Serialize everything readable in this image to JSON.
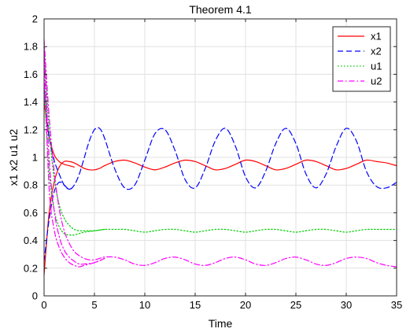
{
  "chart_data": {
    "type": "line",
    "title": "Theorem 4.1",
    "xlabel": "Time",
    "ylabel": "x1 x2 u1 u2",
    "xlim": [
      0,
      35
    ],
    "ylim": [
      0,
      2
    ],
    "xticks": [
      0,
      5,
      10,
      15,
      20,
      25,
      30,
      35
    ],
    "yticks": [
      0,
      0.2,
      0.4,
      0.6,
      0.8,
      1,
      1.2,
      1.4,
      1.6,
      1.8,
      2
    ],
    "xtick_labels": [
      "0",
      "5",
      "10",
      "15",
      "20",
      "25",
      "30",
      "35"
    ],
    "ytick_labels": [
      "0",
      "0.2",
      "0.4",
      "0.6",
      "0.8",
      "1",
      "1.2",
      "1.4",
      "1.6",
      "1.8",
      "2"
    ],
    "grid": true,
    "legend_position": "top-right",
    "series": [
      {
        "name": "x1",
        "color": "#ff0000",
        "dash": "solid",
        "x": [
          0,
          0.5,
          1,
          1.5,
          2,
          2.5,
          3,
          3.5,
          4,
          4.5,
          5,
          5.5,
          6,
          7,
          8,
          9,
          10,
          11,
          12,
          13,
          14,
          15,
          16,
          17,
          18,
          19,
          20,
          21,
          22,
          23,
          24,
          25,
          26,
          27,
          28,
          29,
          30,
          31,
          32,
          33,
          34,
          35
        ],
        "y": [
          0.15,
          0.6,
          0.82,
          0.93,
          0.97,
          0.97,
          0.96,
          0.94,
          0.92,
          0.91,
          0.91,
          0.92,
          0.94,
          0.97,
          0.98,
          0.96,
          0.93,
          0.91,
          0.93,
          0.96,
          0.98,
          0.97,
          0.94,
          0.91,
          0.92,
          0.95,
          0.98,
          0.97,
          0.94,
          0.91,
          0.92,
          0.95,
          0.98,
          0.97,
          0.94,
          0.91,
          0.92,
          0.95,
          0.98,
          0.97,
          0.96,
          0.94
        ]
      },
      {
        "name": "x1",
        "color": "#ff0000",
        "dash": "solid",
        "x": [
          0,
          0.5,
          1,
          1.5,
          2,
          2.5,
          3
        ],
        "y": [
          1.4,
          1.15,
          1.02,
          0.97,
          0.95,
          0.94,
          0.93
        ]
      },
      {
        "name": "x2",
        "color": "#0000ff",
        "dash": "dash",
        "x": [
          0,
          0.5,
          1,
          1.5,
          2,
          2.5,
          3,
          3.5,
          4,
          4.5,
          5,
          5.5,
          6,
          7,
          8,
          9,
          10,
          11,
          12,
          13,
          14,
          15,
          16,
          17,
          18,
          19,
          20,
          21,
          22,
          23,
          24,
          25,
          26,
          27,
          28,
          29,
          30,
          31,
          32,
          33,
          34,
          35
        ],
        "y": [
          0.25,
          0.55,
          0.75,
          0.82,
          0.8,
          0.77,
          0.8,
          0.88,
          1.0,
          1.12,
          1.2,
          1.21,
          1.14,
          0.92,
          0.78,
          0.8,
          0.98,
          1.17,
          1.2,
          1.05,
          0.84,
          0.78,
          0.92,
          1.12,
          1.21,
          1.08,
          0.86,
          0.78,
          0.9,
          1.1,
          1.21,
          1.1,
          0.88,
          0.78,
          0.88,
          1.08,
          1.21,
          1.12,
          0.9,
          0.79,
          0.78,
          0.82
        ]
      },
      {
        "name": "x2",
        "color": "#0000ff",
        "dash": "dash",
        "x": [
          0,
          0.5,
          1,
          1.5,
          2,
          2.5,
          3
        ],
        "y": [
          1.5,
          1.15,
          0.98,
          0.88,
          0.8,
          0.77,
          0.79
        ]
      },
      {
        "name": "u1",
        "color": "#00cc00",
        "dash": "dot",
        "x": [
          0,
          0.5,
          1,
          1.5,
          2,
          2.5,
          3,
          3.5,
          4,
          5,
          6,
          7,
          8,
          9,
          10,
          11,
          12,
          13,
          14,
          15,
          16,
          17,
          18,
          19,
          20,
          21,
          22,
          23,
          24,
          25,
          26,
          27,
          28,
          29,
          30,
          31,
          32,
          33,
          34,
          35
        ],
        "y": [
          1.8,
          1.2,
          0.85,
          0.66,
          0.56,
          0.51,
          0.48,
          0.47,
          0.47,
          0.47,
          0.48,
          0.48,
          0.48,
          0.47,
          0.46,
          0.47,
          0.48,
          0.48,
          0.47,
          0.46,
          0.47,
          0.48,
          0.48,
          0.47,
          0.46,
          0.47,
          0.48,
          0.48,
          0.47,
          0.46,
          0.47,
          0.48,
          0.48,
          0.47,
          0.46,
          0.47,
          0.48,
          0.48,
          0.48,
          0.48
        ]
      },
      {
        "name": "u1",
        "color": "#00cc00",
        "dash": "dot",
        "x": [
          0,
          0.5,
          1,
          1.5,
          2,
          2.5,
          3,
          3.5,
          4,
          5,
          6
        ],
        "y": [
          1.5,
          0.9,
          0.62,
          0.5,
          0.45,
          0.44,
          0.44,
          0.45,
          0.46,
          0.47,
          0.48
        ]
      },
      {
        "name": "u2",
        "color": "#ff00ff",
        "dash": "dashdot",
        "x": [
          0,
          0.5,
          1,
          1.5,
          2,
          2.5,
          3,
          3.5,
          4,
          4.5,
          5,
          5.5,
          6,
          7,
          8,
          9,
          10,
          11,
          12,
          13,
          14,
          15,
          16,
          17,
          18,
          19,
          20,
          21,
          22,
          23,
          24,
          25,
          26,
          27,
          28,
          29,
          30,
          31,
          32,
          33,
          34,
          35
        ],
        "y": [
          1.85,
          1.3,
          0.9,
          0.63,
          0.47,
          0.38,
          0.32,
          0.29,
          0.27,
          0.26,
          0.26,
          0.27,
          0.28,
          0.28,
          0.26,
          0.23,
          0.22,
          0.24,
          0.27,
          0.28,
          0.26,
          0.23,
          0.22,
          0.24,
          0.27,
          0.28,
          0.26,
          0.23,
          0.22,
          0.24,
          0.27,
          0.28,
          0.26,
          0.23,
          0.22,
          0.24,
          0.27,
          0.28,
          0.27,
          0.24,
          0.22,
          0.21
        ]
      },
      {
        "name": "u2",
        "color": "#ff00ff",
        "dash": "dashdot",
        "x": [
          0,
          0.5,
          1,
          1.5,
          2,
          2.5,
          3,
          3.5,
          4,
          5,
          6
        ],
        "y": [
          1.8,
          1.0,
          0.62,
          0.43,
          0.33,
          0.28,
          0.25,
          0.23,
          0.23,
          0.24,
          0.27
        ]
      },
      {
        "name": "u2",
        "color": "#ff00ff",
        "dash": "dashdot",
        "x": [
          0,
          0.5,
          1,
          1.5,
          2,
          2.5,
          3,
          3.5,
          4,
          5,
          6
        ],
        "y": [
          1.7,
          0.78,
          0.48,
          0.35,
          0.28,
          0.24,
          0.22,
          0.21,
          0.22,
          0.24,
          0.27
        ]
      }
    ],
    "legend": [
      {
        "label": "x1",
        "color": "#ff0000",
        "dash": "solid"
      },
      {
        "label": "x2",
        "color": "#0000ff",
        "dash": "dash"
      },
      {
        "label": "u1",
        "color": "#00cc00",
        "dash": "dot"
      },
      {
        "label": "u2",
        "color": "#ff00ff",
        "dash": "dashdot"
      }
    ]
  }
}
